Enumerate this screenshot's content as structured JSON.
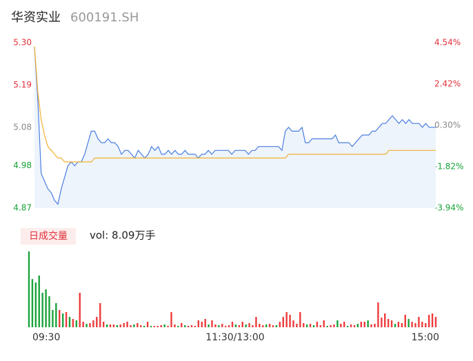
{
  "chart_data": [
    {
      "type": "line",
      "title": "华资实业",
      "subtitle": "600191.SH",
      "xlim": [
        0,
        120
      ],
      "xticks": [
        {
          "value": 0,
          "label": "09:30"
        },
        {
          "value": 60,
          "label": "11:30/13:00"
        },
        {
          "value": 120,
          "label": "15:00"
        }
      ],
      "ylim": [
        4.87,
        5.3
      ],
      "yticks": [
        {
          "value": 5.3,
          "label": "5.30"
        },
        5.19,
        5.08,
        4.98,
        4.87
      ],
      "y2lim": [
        -3.94,
        4.54
      ],
      "y2ticks": [
        {
          "value": 4.54,
          "label": "4.54%"
        },
        {
          "value": 2.42,
          "label": "2.42%"
        },
        {
          "value": 0.3,
          "label": "0.30%"
        },
        {
          "value": -1.82,
          "label": "-1.82%"
        },
        {
          "value": -3.94,
          "label": "-3.94%"
        }
      ],
      "tick_colors": [
        "#e0303a",
        "#888888",
        "#17a337"
      ],
      "area_color": "#eef4fc",
      "series": [
        {
          "color": "#4a7de0",
          "values": [
            5.29,
            5.15,
            4.96,
            4.94,
            4.92,
            4.91,
            4.89,
            4.88,
            4.92,
            4.95,
            4.98,
            4.99,
            4.98,
            4.99,
            4.99,
            5.01,
            5.04,
            5.07,
            5.07,
            5.05,
            5.04,
            5.04,
            5.05,
            5.04,
            5.04,
            5.03,
            5.01,
            5.02,
            5.02,
            5.01,
            5.0,
            5.02,
            5.01,
            5.0,
            5.01,
            5.03,
            5.02,
            5.03,
            5.01,
            5.01,
            5.02,
            5.01,
            5.02,
            5.01,
            5.01,
            5.02,
            5.01,
            5.01,
            5.01,
            5.0,
            5.01,
            5.01,
            5.02,
            5.01,
            5.02,
            5.02,
            5.02,
            5.02,
            5.02,
            5.01,
            5.02,
            5.02,
            5.02,
            5.02,
            5.01,
            5.02,
            5.02,
            5.03,
            5.03,
            5.03,
            5.03,
            5.03,
            5.03,
            5.03,
            5.02,
            5.07,
            5.08,
            5.07,
            5.07,
            5.07,
            5.08,
            5.04,
            5.04,
            5.05,
            5.05,
            5.05,
            5.05,
            5.05,
            5.05,
            5.05,
            5.06,
            5.04,
            5.04,
            5.04,
            5.04,
            5.03,
            5.04,
            5.05,
            5.06,
            5.06,
            5.06,
            5.07,
            5.07,
            5.08,
            5.09,
            5.09,
            5.1,
            5.11,
            5.1,
            5.09,
            5.1,
            5.09,
            5.1,
            5.09,
            5.09,
            5.09,
            5.08,
            5.09,
            5.08,
            5.08,
            5.08
          ]
        },
        {
          "color": "#f0b030",
          "values": [
            5.29,
            5.17,
            5.1,
            5.06,
            5.03,
            5.02,
            5.01,
            5.0,
            5.0,
            4.99,
            4.99,
            4.99,
            4.99,
            4.99,
            4.99,
            4.99,
            4.99,
            4.99,
            5.0,
            5.0,
            5.0,
            5.0,
            5.0,
            5.0,
            5.0,
            5.0,
            5.0,
            5.0,
            5.0,
            5.0,
            5.0,
            5.0,
            5.0,
            5.0,
            5.0,
            5.0,
            5.0,
            5.0,
            5.0,
            5.0,
            5.0,
            5.0,
            5.0,
            5.0,
            5.0,
            5.0,
            5.0,
            5.0,
            5.0,
            5.0,
            5.0,
            5.0,
            5.0,
            5.0,
            5.0,
            5.0,
            5.0,
            5.0,
            5.0,
            5.0,
            5.0,
            5.0,
            5.0,
            5.0,
            5.0,
            5.0,
            5.0,
            5.0,
            5.0,
            5.0,
            5.0,
            5.0,
            5.0,
            5.0,
            5.0,
            5.0,
            5.01,
            5.01,
            5.01,
            5.01,
            5.01,
            5.01,
            5.01,
            5.01,
            5.01,
            5.01,
            5.01,
            5.01,
            5.01,
            5.01,
            5.01,
            5.01,
            5.01,
            5.01,
            5.01,
            5.01,
            5.01,
            5.01,
            5.01,
            5.01,
            5.01,
            5.01,
            5.01,
            5.01,
            5.01,
            5.01,
            5.02,
            5.02,
            5.02,
            5.02,
            5.02,
            5.02,
            5.02,
            5.02,
            5.02,
            5.02,
            5.02,
            5.02,
            5.02,
            5.02,
            5.02
          ]
        }
      ]
    },
    {
      "type": "bar",
      "title": "日成交量",
      "subtitle": "vol: 8.09万手",
      "xlim": [
        0,
        120
      ],
      "ylim": [
        0,
        110
      ],
      "values": [
        110,
        70,
        65,
        75,
        50,
        55,
        45,
        25,
        35,
        25,
        20,
        22,
        15,
        12,
        10,
        50,
        8,
        5,
        6,
        10,
        15,
        35,
        8,
        4,
        4,
        4,
        3,
        4,
        6,
        8,
        3,
        4,
        6,
        3,
        2,
        8,
        2,
        2,
        2,
        3,
        4,
        2,
        22,
        4,
        2,
        6,
        3,
        2,
        3,
        2,
        10,
        8,
        12,
        4,
        10,
        4,
        3,
        5,
        2,
        3,
        8,
        4,
        3,
        8,
        4,
        6,
        3,
        15,
        5,
        3,
        4,
        5,
        3,
        3,
        8,
        15,
        22,
        18,
        10,
        5,
        22,
        6,
        4,
        5,
        3,
        8,
        3,
        10,
        2,
        3,
        4,
        10,
        5,
        8,
        2,
        4,
        3,
        5,
        8,
        8,
        10,
        4,
        5,
        36,
        14,
        20,
        12,
        10,
        5,
        8,
        6,
        18,
        12,
        8,
        6,
        15,
        8,
        6,
        18,
        20,
        15
      ],
      "colors": [
        "#1aa33a",
        "#1aa33a",
        "#1aa33a",
        "#1aa33a",
        "#1aa33a",
        "#1aa33a",
        "#1aa33a",
        "#1aa33a",
        "#1aa33a",
        "#ee3b3b",
        "#1aa33a",
        "#ee3b3b",
        "#1aa33a",
        "#ee3b3b",
        "#1aa33a",
        "#ee3b3b",
        "#ee3b3b",
        "#1aa33a",
        "#ee3b3b",
        "#ee3b3b",
        "#ee3b3b",
        "#ee3b3b",
        "#ee3b3b",
        "#1aa33a",
        "#ee3b3b",
        "#ee3b3b",
        "#1aa33a",
        "#ee3b3b",
        "#ee3b3b",
        "#ee3b3b",
        "#ee3b3b",
        "#1aa33a",
        "#ee3b3b",
        "#ee3b3b",
        "#1aa33a",
        "#ee3b3b",
        "#1aa33a",
        "#ee3b3b",
        "#ee3b3b",
        "#ee3b3b",
        "#1aa33a",
        "#ee3b3b",
        "#ee3b3b",
        "#ee3b3b",
        "#1aa33a",
        "#ee3b3b",
        "#1aa33a",
        "#ee3b3b",
        "#ee3b3b",
        "#ee3b3b",
        "#ee3b3b",
        "#ee3b3b",
        "#ee3b3b",
        "#1aa33a",
        "#ee3b3b",
        "#ee3b3b",
        "#1aa33a",
        "#ee3b3b",
        "#ee3b3b",
        "#ee3b3b",
        "#ee3b3b",
        "#1aa33a",
        "#ee3b3b",
        "#ee3b3b",
        "#1aa33a",
        "#ee3b3b",
        "#ee3b3b",
        "#ee3b3b",
        "#ee3b3b",
        "#ee3b3b",
        "#1aa33a",
        "#ee3b3b",
        "#ee3b3b",
        "#1aa33a",
        "#ee3b3b",
        "#ee3b3b",
        "#ee3b3b",
        "#ee3b3b",
        "#ee3b3b",
        "#ee3b3b",
        "#ee3b3b",
        "#ee3b3b",
        "#1aa33a",
        "#ee3b3b",
        "#1aa33a",
        "#ee3b3b",
        "#ee3b3b",
        "#ee3b3b",
        "#1aa33a",
        "#ee3b3b",
        "#ee3b3b",
        "#1aa33a",
        "#ee3b3b",
        "#ee3b3b",
        "#1aa33a",
        "#ee3b3b",
        "#ee3b3b",
        "#1aa33a",
        "#ee3b3b",
        "#ee3b3b",
        "#1aa33a",
        "#ee3b3b",
        "#ee3b3b",
        "#ee3b3b",
        "#ee3b3b",
        "#ee3b3b",
        "#ee3b3b",
        "#ee3b3b",
        "#1aa33a",
        "#ee3b3b",
        "#ee3b3b",
        "#ee3b3b",
        "#1aa33a",
        "#ee3b3b",
        "#ee3b3b",
        "#ee3b3b",
        "#ee3b3b",
        "#ee3b3b",
        "#ee3b3b",
        "#ee3b3b",
        "#ee3b3b"
      ],
      "label_color": "#e0303a",
      "label_background": "#fdecec"
    }
  ]
}
